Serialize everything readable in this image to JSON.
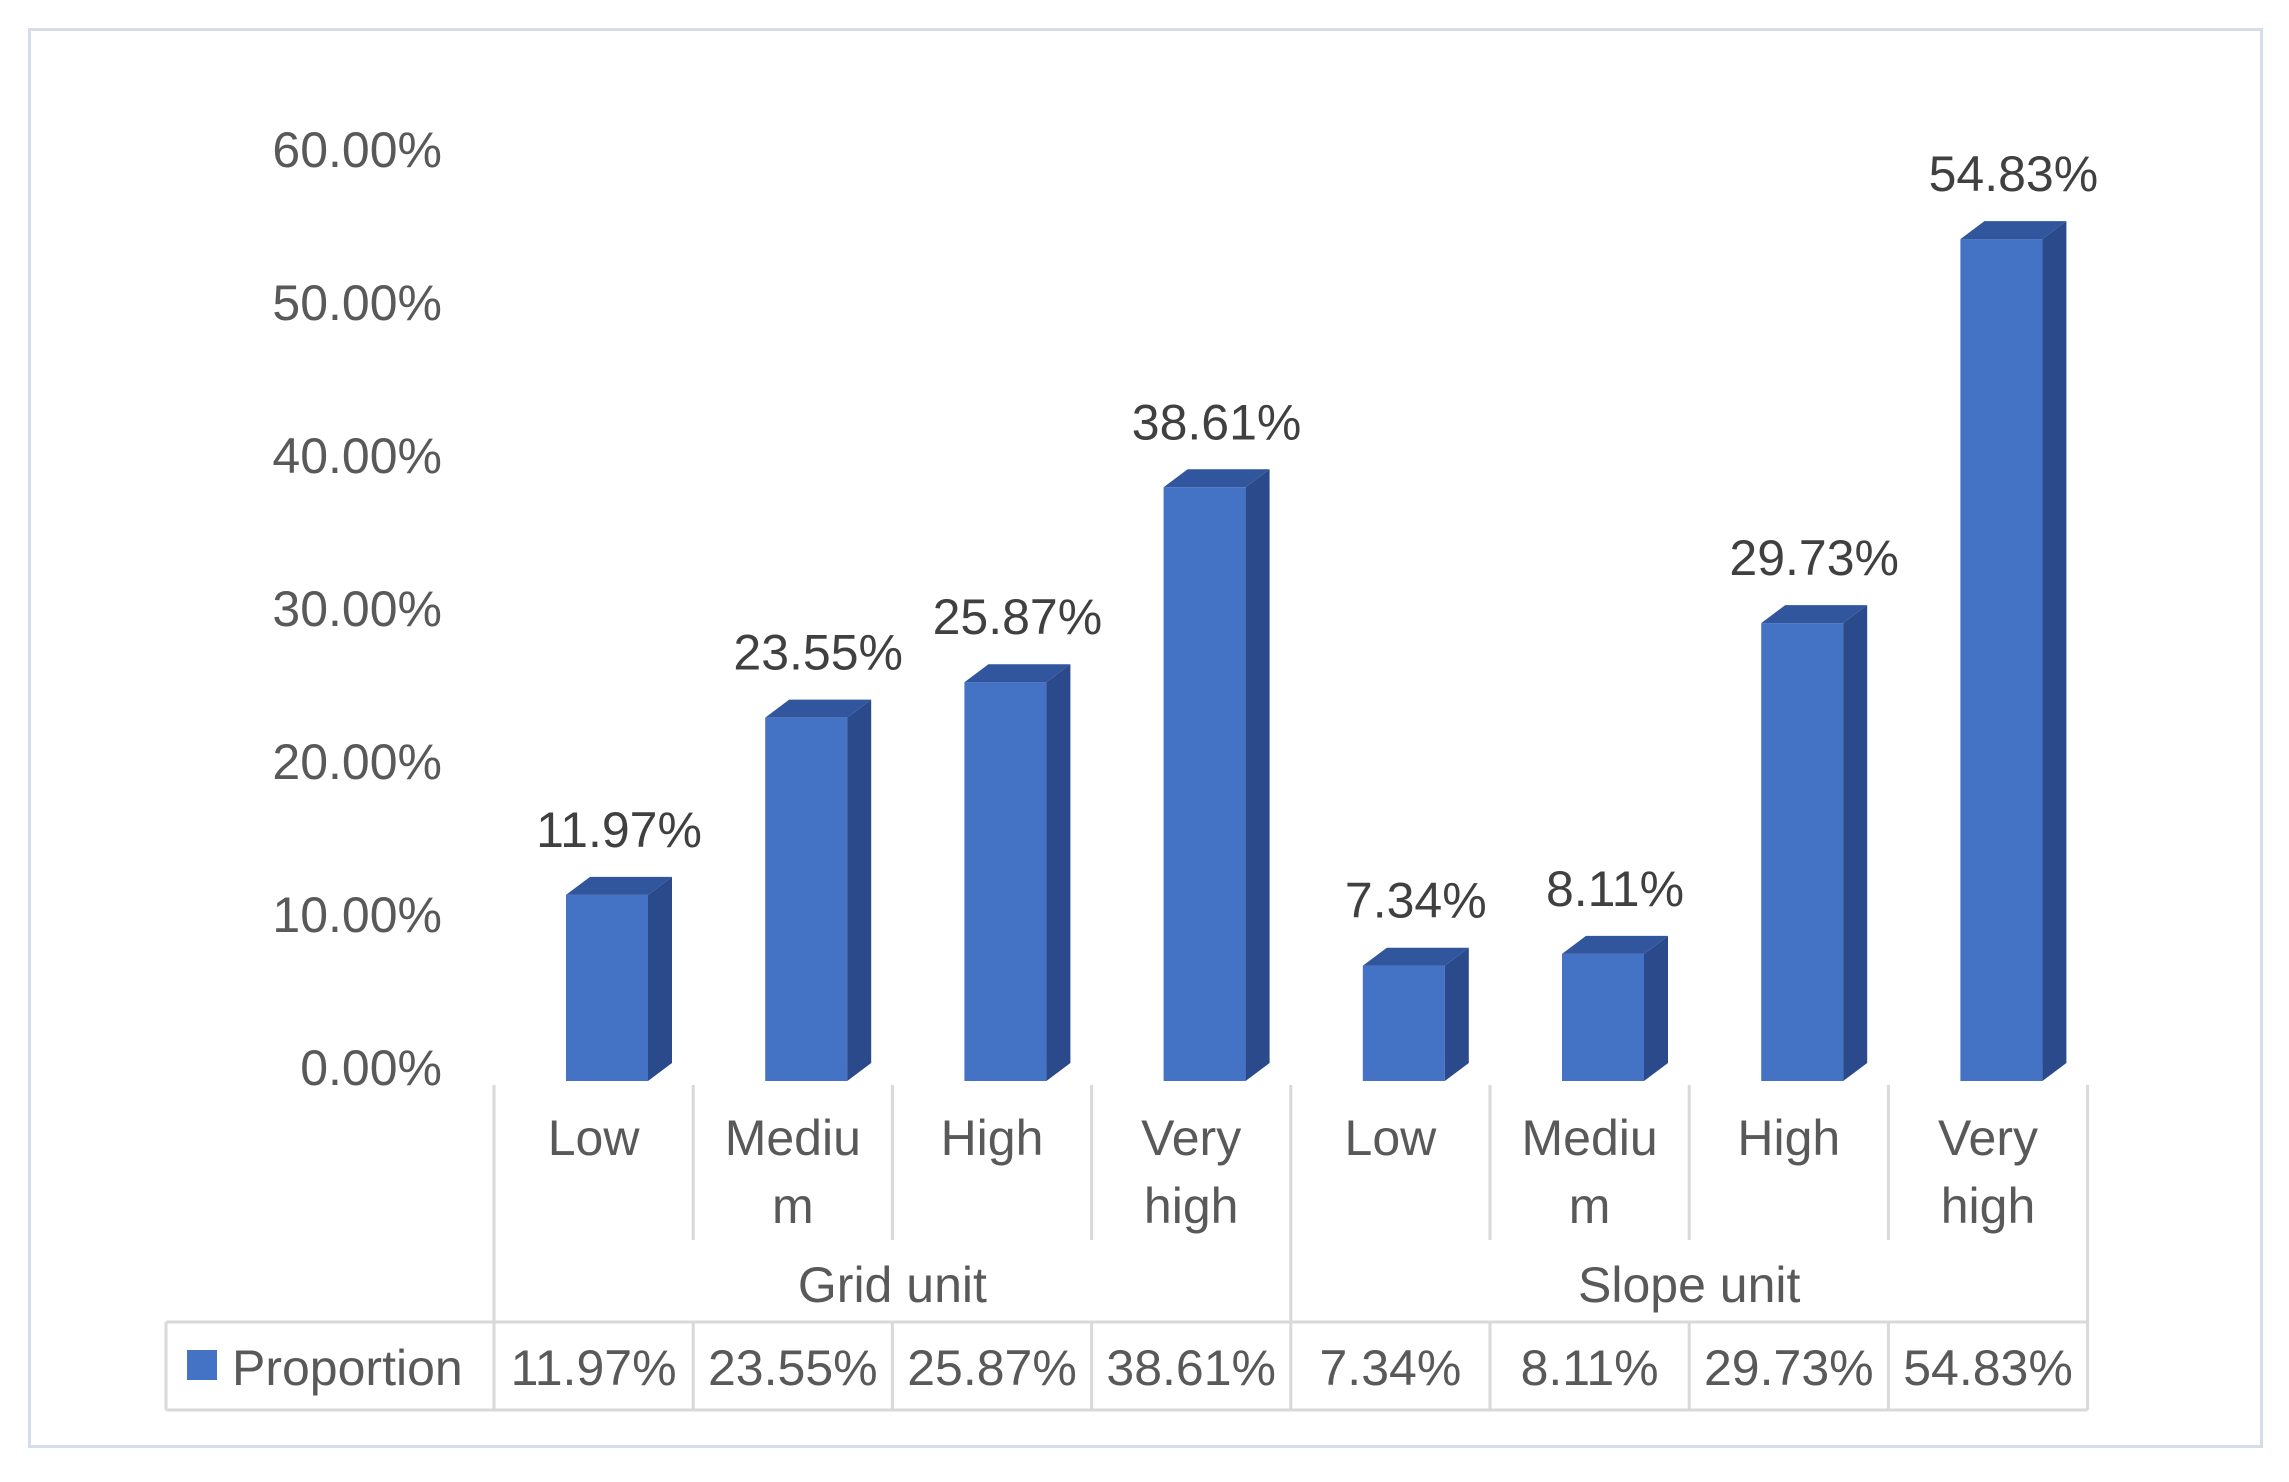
{
  "chart_data": {
    "type": "bar",
    "style": "3d-column",
    "groups": [
      {
        "name": "Grid unit",
        "categories": [
          "Low",
          "Medium",
          "High",
          "Very high"
        ]
      },
      {
        "name": "Slope unit",
        "categories": [
          "Low",
          "Medium",
          "High",
          "Very high"
        ]
      }
    ],
    "category_lines": [
      [
        "Low"
      ],
      [
        "Mediu",
        "m"
      ],
      [
        "High"
      ],
      [
        "Very",
        "high"
      ],
      [
        "Low"
      ],
      [
        "Mediu",
        "m"
      ],
      [
        "High"
      ],
      [
        "Very",
        "high"
      ]
    ],
    "series": [
      {
        "name": "Proportion",
        "values": [
          11.97,
          23.55,
          25.87,
          38.61,
          7.34,
          8.11,
          29.73,
          54.83
        ],
        "labels": [
          "11.97%",
          "23.55%",
          "25.87%",
          "38.61%",
          "7.34%",
          "8.11%",
          "29.73%",
          "54.83%"
        ]
      }
    ],
    "y_ticks": [
      "0.00%",
      "10.00%",
      "20.00%",
      "30.00%",
      "40.00%",
      "50.00%",
      "60.00%"
    ],
    "ylim": [
      0,
      60
    ],
    "grid": false,
    "legend": "data-table",
    "colors": {
      "bar_front": "#4472c4",
      "bar_side": "#2b4a8b",
      "bar_top": "#31569d",
      "axis_text": "#595959",
      "label_text": "#404040",
      "table_lines": "#d9d9d9"
    }
  }
}
